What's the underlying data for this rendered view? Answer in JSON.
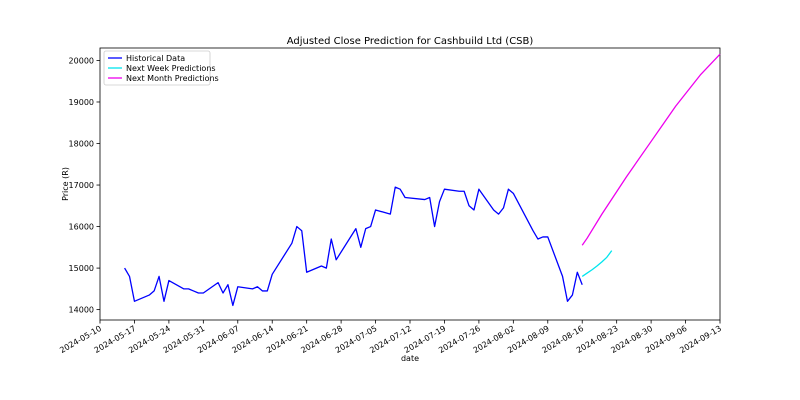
{
  "chart_data": {
    "type": "line",
    "title": "Adjusted Close Prediction for Cashbuild Ltd (CSB)",
    "xlabel": "date",
    "ylabel": "Price (R)",
    "x_ticks": [
      "2024-05-10",
      "2024-05-17",
      "2024-05-24",
      "2024-05-31",
      "2024-06-07",
      "2024-06-14",
      "2024-06-21",
      "2024-06-28",
      "2024-07-05",
      "2024-07-12",
      "2024-07-19",
      "2024-07-26",
      "2024-08-02",
      "2024-08-09",
      "2024-08-16",
      "2024-08-23",
      "2024-08-30",
      "2024-09-06",
      "2024-09-13"
    ],
    "xlim": [
      "2024-05-10",
      "2024-09-13"
    ],
    "y_ticks": [
      14000,
      15000,
      16000,
      17000,
      18000,
      19000,
      20000
    ],
    "ylim": [
      13750,
      20300
    ],
    "grid": false,
    "legend_position": "top-left",
    "series": [
      {
        "name": "Historical Data",
        "color": "#0000ff",
        "points": [
          [
            "2024-05-15",
            15000
          ],
          [
            "2024-05-16",
            14800
          ],
          [
            "2024-05-17",
            14200
          ],
          [
            "2024-05-20",
            14350
          ],
          [
            "2024-05-21",
            14450
          ],
          [
            "2024-05-22",
            14800
          ],
          [
            "2024-05-23",
            14200
          ],
          [
            "2024-05-24",
            14700
          ],
          [
            "2024-05-27",
            14500
          ],
          [
            "2024-05-28",
            14500
          ],
          [
            "2024-05-29",
            14450
          ],
          [
            "2024-05-30",
            14400
          ],
          [
            "2024-05-31",
            14400
          ],
          [
            "2024-06-03",
            14650
          ],
          [
            "2024-06-04",
            14400
          ],
          [
            "2024-06-05",
            14600
          ],
          [
            "2024-06-06",
            14100
          ],
          [
            "2024-06-07",
            14550
          ],
          [
            "2024-06-10",
            14500
          ],
          [
            "2024-06-11",
            14550
          ],
          [
            "2024-06-12",
            14450
          ],
          [
            "2024-06-13",
            14450
          ],
          [
            "2024-06-14",
            14850
          ],
          [
            "2024-06-18",
            15600
          ],
          [
            "2024-06-19",
            16000
          ],
          [
            "2024-06-20",
            15900
          ],
          [
            "2024-06-21",
            14900
          ],
          [
            "2024-06-24",
            15050
          ],
          [
            "2024-06-25",
            15000
          ],
          [
            "2024-06-26",
            15700
          ],
          [
            "2024-06-27",
            15200
          ],
          [
            "2024-07-01",
            15950
          ],
          [
            "2024-07-02",
            15500
          ],
          [
            "2024-07-03",
            15950
          ],
          [
            "2024-07-04",
            16000
          ],
          [
            "2024-07-05",
            16400
          ],
          [
            "2024-07-08",
            16300
          ],
          [
            "2024-07-09",
            16950
          ],
          [
            "2024-07-10",
            16900
          ],
          [
            "2024-07-11",
            16700
          ],
          [
            "2024-07-15",
            16650
          ],
          [
            "2024-07-16",
            16700
          ],
          [
            "2024-07-17",
            16000
          ],
          [
            "2024-07-18",
            16600
          ],
          [
            "2024-07-19",
            16900
          ],
          [
            "2024-07-22",
            16850
          ],
          [
            "2024-07-23",
            16850
          ],
          [
            "2024-07-24",
            16500
          ],
          [
            "2024-07-25",
            16400
          ],
          [
            "2024-07-26",
            16900
          ],
          [
            "2024-07-29",
            16400
          ],
          [
            "2024-07-30",
            16300
          ],
          [
            "2024-07-31",
            16450
          ],
          [
            "2024-08-01",
            16900
          ],
          [
            "2024-08-02",
            16800
          ],
          [
            "2024-08-06",
            15900
          ],
          [
            "2024-08-07",
            15700
          ],
          [
            "2024-08-08",
            15750
          ],
          [
            "2024-08-09",
            15750
          ],
          [
            "2024-08-12",
            14800
          ],
          [
            "2024-08-13",
            14200
          ],
          [
            "2024-08-14",
            14350
          ],
          [
            "2024-08-15",
            14900
          ],
          [
            "2024-08-16",
            14600
          ]
        ]
      },
      {
        "name": "Next Week Predictions",
        "color": "#00e5ee",
        "points": [
          [
            "2024-08-16",
            14800
          ],
          [
            "2024-08-17",
            14880
          ],
          [
            "2024-08-18",
            14960
          ],
          [
            "2024-08-19",
            15050
          ],
          [
            "2024-08-20",
            15150
          ],
          [
            "2024-08-21",
            15260
          ],
          [
            "2024-08-22",
            15420
          ]
        ]
      },
      {
        "name": "Next Month Predictions",
        "color": "#ee00ee",
        "points": [
          [
            "2024-08-16",
            15550
          ],
          [
            "2024-08-17",
            15720
          ],
          [
            "2024-08-20",
            16300
          ],
          [
            "2024-08-25",
            17200
          ],
          [
            "2024-08-30",
            18050
          ],
          [
            "2024-09-04",
            18900
          ],
          [
            "2024-09-09",
            19650
          ],
          [
            "2024-09-13",
            20150
          ]
        ]
      }
    ]
  }
}
